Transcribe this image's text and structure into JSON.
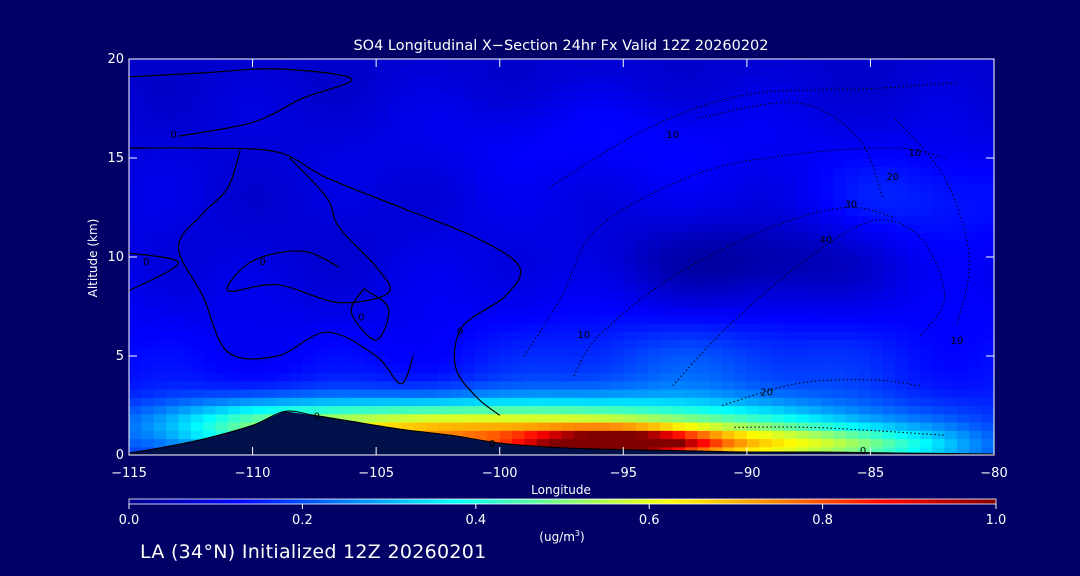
{
  "chart_data": {
    "type": "heatmap",
    "title": "SO4 Longitudinal X−Section 24hr  Fx Valid 12Z 20260202",
    "xlabel": "Longitude",
    "ylabel": "Altitude (km)",
    "xlim": [
      -115,
      -80
    ],
    "ylim": [
      0,
      20
    ],
    "xticks": [
      -115,
      -110,
      -105,
      -100,
      -95,
      -90,
      -85,
      -80
    ],
    "xtick_labels": [
      "−115",
      "−110",
      "−105",
      "−100",
      "−95",
      "−90",
      "−85",
      "−80"
    ],
    "yticks": [
      0,
      5,
      10,
      15,
      20
    ],
    "ytick_labels": [
      "0",
      "5",
      "10",
      "15",
      "20"
    ],
    "colorbar": {
      "min": 0.0,
      "max": 1.0,
      "ticks": [
        0.0,
        0.2,
        0.4,
        0.6,
        0.8,
        1.0
      ],
      "tick_labels": [
        "0.0",
        "0.2",
        "0.4",
        "0.6",
        "0.8",
        "1.0"
      ],
      "unit_label": "(ug/m",
      "unit_sup": "3",
      "unit_close": ")",
      "colormap": [
        "#00008f",
        "#0000ff",
        "#0080ff",
        "#00ffff",
        "#80ff80",
        "#ffff00",
        "#ff8000",
        "#ff0000",
        "#800000"
      ]
    },
    "plumes": [
      {
        "x": -96,
        "y": 0.7,
        "sx": 7.5,
        "sy": 1.3,
        "v": 0.55
      },
      {
        "x": -95,
        "y": 0.6,
        "sx": 2.6,
        "sy": 0.45,
        "v": 0.5
      },
      {
        "x": -104,
        "y": 1.3,
        "sx": 4.5,
        "sy": 0.9,
        "v": 0.22
      },
      {
        "x": -110,
        "y": 1.6,
        "sx": 3.5,
        "sy": 0.9,
        "v": 0.18
      },
      {
        "x": -86,
        "y": 0.5,
        "sx": 3.0,
        "sy": 0.6,
        "v": 0.18
      },
      {
        "x": -92,
        "y": 4.5,
        "sx": 5.0,
        "sy": 1.6,
        "v": 0.07
      },
      {
        "x": -83,
        "y": 13,
        "sx": 3.0,
        "sy": 1.8,
        "v": 0.06
      },
      {
        "x": -95,
        "y": 16,
        "sx": 6.0,
        "sy": 1.6,
        "v": 0.04
      },
      {
        "x": -90,
        "y": 9.7,
        "sx": 4.0,
        "sy": 1.5,
        "v": -0.09
      },
      {
        "x": -108,
        "y": 10,
        "sx": 5.0,
        "sy": 3.0,
        "v": -0.03
      }
    ],
    "terrain": [
      {
        "x": -115,
        "y": 0.1
      },
      {
        "x": -114,
        "y": 0.3
      },
      {
        "x": -112,
        "y": 0.8
      },
      {
        "x": -110,
        "y": 1.5
      },
      {
        "x": -108.7,
        "y": 2.2
      },
      {
        "x": -107.5,
        "y": 2.0
      },
      {
        "x": -106,
        "y": 1.7
      },
      {
        "x": -104,
        "y": 1.3
      },
      {
        "x": -102,
        "y": 1.0
      },
      {
        "x": -100,
        "y": 0.6
      },
      {
        "x": -98,
        "y": 0.4
      },
      {
        "x": -96,
        "y": 0.3
      },
      {
        "x": -94,
        "y": 0.25
      },
      {
        "x": -92,
        "y": 0.2
      },
      {
        "x": -90,
        "y": 0.15
      },
      {
        "x": -87,
        "y": 0.15
      },
      {
        "x": -84,
        "y": 0.1
      },
      {
        "x": -80,
        "y": 0.05
      }
    ],
    "contours_solid": [
      [
        {
          "x": -115,
          "y": 19.1
        },
        {
          "x": -112,
          "y": 19.3
        },
        {
          "x": -109,
          "y": 19.5
        },
        {
          "x": -106,
          "y": 19.0
        },
        {
          "x": -108,
          "y": 18.0
        },
        {
          "x": -110,
          "y": 16.8
        },
        {
          "x": -113,
          "y": 16.1
        }
      ],
      [
        {
          "x": -115,
          "y": 15.5
        },
        {
          "x": -112,
          "y": 15.5
        },
        {
          "x": -109,
          "y": 15.3
        },
        {
          "x": -107,
          "y": 14.0
        },
        {
          "x": -104,
          "y": 12.5
        },
        {
          "x": -101,
          "y": 11.0
        },
        {
          "x": -99.2,
          "y": 9.5
        },
        {
          "x": -99.8,
          "y": 8.0
        },
        {
          "x": -101.5,
          "y": 6.5
        },
        {
          "x": -101.8,
          "y": 4.5
        },
        {
          "x": -101,
          "y": 3.0
        },
        {
          "x": -100,
          "y": 2.0
        }
      ],
      [
        {
          "x": -110.5,
          "y": 15.4
        },
        {
          "x": -111,
          "y": 13.5
        },
        {
          "x": -112,
          "y": 12.2
        },
        {
          "x": -113,
          "y": 10.5
        },
        {
          "x": -112,
          "y": 8.0
        },
        {
          "x": -111,
          "y": 5.2
        },
        {
          "x": -109,
          "y": 5.0
        },
        {
          "x": -107,
          "y": 6.2
        },
        {
          "x": -105,
          "y": 5.0
        },
        {
          "x": -104,
          "y": 3.6
        },
        {
          "x": -103.5,
          "y": 5.0
        }
      ],
      [
        {
          "x": -108.5,
          "y": 15.0
        },
        {
          "x": -107,
          "y": 13.0
        },
        {
          "x": -106.5,
          "y": 11.5
        },
        {
          "x": -105,
          "y": 9.5
        },
        {
          "x": -104.5,
          "y": 8.2
        },
        {
          "x": -106.5,
          "y": 7.7
        },
        {
          "x": -109,
          "y": 8.6
        },
        {
          "x": -111,
          "y": 8.3
        },
        {
          "x": -110,
          "y": 9.8
        },
        {
          "x": -108,
          "y": 10.3
        },
        {
          "x": -106.5,
          "y": 9.5
        }
      ],
      [
        {
          "x": -115,
          "y": 10.2
        },
        {
          "x": -113,
          "y": 9.7
        },
        {
          "x": -115,
          "y": 8.3
        }
      ],
      [
        {
          "x": -105.5,
          "y": 8.4
        },
        {
          "x": -104.5,
          "y": 7.4
        },
        {
          "x": -105,
          "y": 5.8
        },
        {
          "x": -106,
          "y": 7.2
        },
        {
          "x": -105.5,
          "y": 8.4
        }
      ]
    ],
    "contours_dotted": [
      [
        {
          "x": -99,
          "y": 5.0
        },
        {
          "x": -97.5,
          "y": 8.0
        },
        {
          "x": -96,
          "y": 11.5
        },
        {
          "x": -92,
          "y": 14.2
        },
        {
          "x": -88,
          "y": 15.2
        },
        {
          "x": -84,
          "y": 15.5
        },
        {
          "x": -82,
          "y": 15.0
        }
      ],
      [
        {
          "x": -98,
          "y": 13.5
        },
        {
          "x": -94,
          "y": 16.5
        },
        {
          "x": -90,
          "y": 18.2
        },
        {
          "x": -85,
          "y": 18.5
        },
        {
          "x": -81.5,
          "y": 18.8
        }
      ],
      [
        {
          "x": -97,
          "y": 4.0
        },
        {
          "x": -96,
          "y": 6.0
        },
        {
          "x": -93,
          "y": 9.0
        },
        {
          "x": -89,
          "y": 11.5
        },
        {
          "x": -86,
          "y": 12.5
        },
        {
          "x": -84,
          "y": 12.0
        }
      ],
      [
        {
          "x": -93,
          "y": 3.5
        },
        {
          "x": -91,
          "y": 6.2
        },
        {
          "x": -88,
          "y": 9.5
        },
        {
          "x": -85,
          "y": 11.8
        },
        {
          "x": -83,
          "y": 11.0
        },
        {
          "x": -82,
          "y": 8.0
        },
        {
          "x": -83,
          "y": 6.0
        }
      ],
      [
        {
          "x": -91,
          "y": 2.5
        },
        {
          "x": -88,
          "y": 3.6
        },
        {
          "x": -85,
          "y": 3.8
        },
        {
          "x": -83,
          "y": 3.5
        }
      ],
      [
        {
          "x": -90.5,
          "y": 1.4
        },
        {
          "x": -87.5,
          "y": 1.4
        },
        {
          "x": -84.5,
          "y": 1.2
        },
        {
          "x": -82,
          "y": 1.0
        }
      ],
      [
        {
          "x": -84,
          "y": 17.0
        },
        {
          "x": -82,
          "y": 14.0
        },
        {
          "x": -81,
          "y": 10.0
        },
        {
          "x": -81.5,
          "y": 6.5
        }
      ],
      [
        {
          "x": -92,
          "y": 17.0
        },
        {
          "x": -88,
          "y": 17.8
        },
        {
          "x": -85.5,
          "y": 16.0
        },
        {
          "x": -84.5,
          "y": 13.0
        }
      ]
    ],
    "contour_labels": [
      {
        "x": -113.2,
        "y": 16.2,
        "text": "0"
      },
      {
        "x": -114.3,
        "y": 9.8,
        "text": "0"
      },
      {
        "x": -109.6,
        "y": 9.8,
        "text": "0"
      },
      {
        "x": -105.6,
        "y": 7.0,
        "text": "0"
      },
      {
        "x": -101.6,
        "y": 6.3,
        "text": "0"
      },
      {
        "x": -107.4,
        "y": 2.0,
        "text": "0"
      },
      {
        "x": -100.3,
        "y": 0.6,
        "text": "0"
      },
      {
        "x": -85.3,
        "y": 0.25,
        "text": "0"
      },
      {
        "x": -93,
        "y": 16.2,
        "text": "10"
      },
      {
        "x": -96.6,
        "y": 6.1,
        "text": "10"
      },
      {
        "x": -83.2,
        "y": 15.3,
        "text": "10"
      },
      {
        "x": -81.5,
        "y": 5.8,
        "text": "10"
      },
      {
        "x": -84.1,
        "y": 14.1,
        "text": "20"
      },
      {
        "x": -89.2,
        "y": 3.2,
        "text": "20"
      },
      {
        "x": -85.8,
        "y": 12.7,
        "text": "30"
      },
      {
        "x": -86.8,
        "y": 10.9,
        "text": "40"
      }
    ]
  },
  "footer": {
    "text": "LA (34°N) Initialized 12Z 20260201"
  }
}
